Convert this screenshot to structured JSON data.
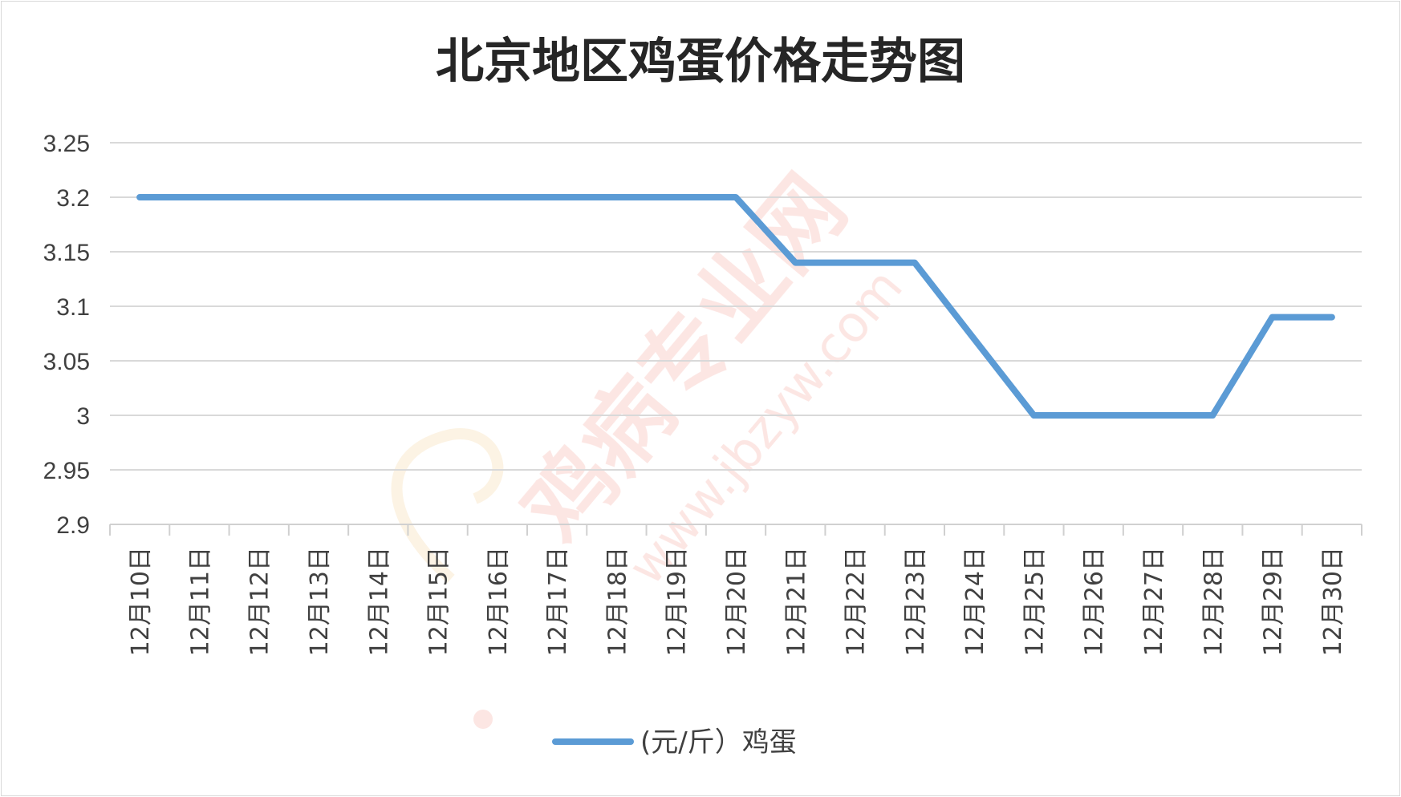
{
  "chart_data": {
    "type": "line",
    "title": "北京地区鸡蛋价格走势图",
    "xlabel": "",
    "ylabel": "",
    "categories": [
      "12月10日",
      "12月11日",
      "12月12日",
      "12月13日",
      "12月14日",
      "12月15日",
      "12月16日",
      "12月17日",
      "12月18日",
      "12月19日",
      "12月20日",
      "12月21日",
      "12月22日",
      "12月23日",
      "12月24日",
      "12月25日",
      "12月26日",
      "12月27日",
      "12月28日",
      "12月29日",
      "12月30日"
    ],
    "series": [
      {
        "name": "(元/斤）鸡蛋",
        "color": "#5b9bd5",
        "values": [
          3.2,
          3.2,
          3.2,
          3.2,
          3.2,
          3.2,
          3.2,
          3.2,
          3.2,
          3.2,
          3.2,
          3.14,
          3.14,
          3.14,
          3.07,
          3.0,
          3.0,
          3.0,
          3.0,
          3.09,
          3.09
        ]
      }
    ],
    "ylim": [
      2.9,
      3.25
    ],
    "yticks": [
      "3.25",
      "3.2",
      "3.15",
      "3.1",
      "3.05",
      "3",
      "2.95",
      "2.9"
    ],
    "grid": true,
    "legend_position": "bottom"
  },
  "watermark": {
    "text": "鸡病专业网",
    "url": "www.jbzyw.com",
    "color": "#e8412d"
  }
}
